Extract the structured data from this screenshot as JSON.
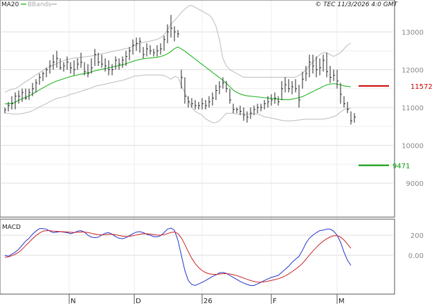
{
  "header": {
    "ma_label": "MA20",
    "bbands_label": "BBands",
    "copyright": "© TEC 11/3/2026 4:0 GMT"
  },
  "colors": {
    "candle": "#222222",
    "ma": "#33bb33",
    "bands": "#bbbbbb",
    "resistance": "#cc0000",
    "support": "#009900",
    "macd": "#2233cc",
    "signal": "#cc2222",
    "grid": "#dddddd",
    "axis": "#555555"
  },
  "chart_data": [
    {
      "type": "candlestick",
      "panel": "price",
      "y_ticks": [
        9000,
        10000,
        11000,
        12000,
        13000
      ],
      "y_tick_labels": [
        "9000",
        "10000",
        "11000",
        "12000",
        "13000"
      ],
      "x_tick_labels": [
        "N",
        "D",
        "26",
        "F",
        "M"
      ],
      "levels": [
        {
          "name": "resistance",
          "value": 11572,
          "label": "11572"
        },
        {
          "name": "support",
          "value": 9471,
          "label": "9471"
        }
      ],
      "series_hlc": [
        [
          11000,
          10850,
          10940
        ],
        [
          11150,
          10900,
          11050
        ],
        [
          11300,
          10950,
          11100
        ],
        [
          11400,
          10950,
          11300
        ],
        [
          11450,
          11100,
          11300
        ],
        [
          11500,
          11150,
          11400
        ],
        [
          11500,
          11200,
          11250
        ],
        [
          11500,
          11200,
          11400
        ],
        [
          11650,
          11300,
          11500
        ],
        [
          11750,
          11400,
          11650
        ],
        [
          11900,
          11600,
          11800
        ],
        [
          11950,
          11700,
          11900
        ],
        [
          12050,
          11800,
          12000
        ],
        [
          12250,
          11900,
          12100
        ],
        [
          12400,
          12000,
          12200
        ],
        [
          12500,
          12050,
          12300
        ],
        [
          12300,
          12000,
          12050
        ],
        [
          12200,
          11950,
          12100
        ],
        [
          12350,
          12000,
          12200
        ],
        [
          12200,
          11900,
          12050
        ],
        [
          12250,
          11850,
          12000
        ],
        [
          12300,
          12000,
          12150
        ],
        [
          12450,
          12050,
          12200
        ],
        [
          12200,
          11850,
          11950
        ],
        [
          12150,
          11800,
          11900
        ],
        [
          12300,
          11900,
          12050
        ],
        [
          12550,
          12100,
          12400
        ],
        [
          12450,
          12100,
          12200
        ],
        [
          12400,
          12050,
          12150
        ],
        [
          12300,
          11950,
          12100
        ],
        [
          12250,
          11850,
          12000
        ],
        [
          12150,
          11850,
          12000
        ],
        [
          12350,
          12000,
          12250
        ],
        [
          12300,
          12000,
          12150
        ],
        [
          12350,
          12050,
          12250
        ],
        [
          12500,
          12100,
          12350
        ],
        [
          12600,
          12250,
          12500
        ],
        [
          12800,
          12400,
          12650
        ],
        [
          12850,
          12500,
          12700
        ],
        [
          12850,
          12450,
          12750
        ],
        [
          12600,
          12300,
          12400
        ],
        [
          12700,
          12350,
          12550
        ],
        [
          12650,
          12400,
          12500
        ],
        [
          12550,
          12350,
          12450
        ],
        [
          12650,
          12350,
          12500
        ],
        [
          12700,
          12400,
          12550
        ],
        [
          12900,
          12500,
          12800
        ],
        [
          13200,
          12700,
          13000
        ],
        [
          13450,
          12850,
          13100
        ],
        [
          13150,
          12750,
          13000
        ],
        [
          13050,
          12850,
          12950
        ],
        [
          12000,
          11500,
          11800
        ],
        [
          11800,
          11100,
          11300
        ],
        [
          11300,
          11000,
          11150
        ],
        [
          11250,
          11000,
          11100
        ],
        [
          11200,
          10950,
          11050
        ],
        [
          11150,
          10950,
          11050
        ],
        [
          11250,
          10950,
          11100
        ],
        [
          11200,
          10950,
          11050
        ],
        [
          11300,
          11000,
          11150
        ],
        [
          11400,
          11050,
          11250
        ],
        [
          11600,
          11200,
          11450
        ],
        [
          11700,
          11350,
          11550
        ],
        [
          11800,
          11500,
          11650
        ],
        [
          11700,
          11400,
          11500
        ],
        [
          11500,
          11100,
          11200
        ],
        [
          11100,
          10850,
          10950
        ],
        [
          11000,
          10850,
          10950
        ],
        [
          11050,
          10800,
          10900
        ],
        [
          11000,
          10650,
          10800
        ],
        [
          10900,
          10600,
          10750
        ],
        [
          11000,
          10700,
          10850
        ],
        [
          11050,
          10800,
          10950
        ],
        [
          11100,
          10850,
          11000
        ],
        [
          11100,
          10900,
          11000
        ],
        [
          11200,
          10950,
          11100
        ],
        [
          11300,
          11000,
          11150
        ],
        [
          11350,
          11050,
          11200
        ],
        [
          11400,
          11100,
          11250
        ],
        [
          11300,
          11050,
          11150
        ],
        [
          11700,
          11200,
          11500
        ],
        [
          11800,
          11400,
          11600
        ],
        [
          11750,
          11400,
          11500
        ],
        [
          11700,
          11350,
          11550
        ],
        [
          11750,
          11400,
          11500
        ],
        [
          11600,
          11000,
          11200
        ],
        [
          11950,
          11500,
          11750
        ],
        [
          12100,
          11700,
          11900
        ],
        [
          12400,
          11800,
          12200
        ],
        [
          12400,
          11900,
          12100
        ],
        [
          12350,
          11800,
          12000
        ],
        [
          12300,
          11850,
          12050
        ],
        [
          12400,
          11950,
          12250
        ],
        [
          12450,
          11800,
          11950
        ],
        [
          12100,
          11650,
          11800
        ],
        [
          12000,
          11700,
          11850
        ],
        [
          12000,
          11500,
          11700
        ],
        [
          11650,
          11100,
          11350
        ],
        [
          11300,
          11000,
          11100
        ],
        [
          11150,
          10850,
          10950
        ],
        [
          10900,
          10550,
          10650
        ],
        [
          10850,
          10600,
          10750
        ]
      ],
      "ma20": [
        11100,
        11100,
        11110,
        11140,
        11190,
        11230,
        11270,
        11310,
        11360,
        11410,
        11470,
        11520,
        11570,
        11620,
        11660,
        11700,
        11730,
        11760,
        11790,
        11820,
        11840,
        11860,
        11880,
        11900,
        11920,
        11940,
        11970,
        11990,
        12010,
        12030,
        12050,
        12070,
        12090,
        12110,
        12130,
        12160,
        12190,
        12220,
        12250,
        12270,
        12290,
        12300,
        12310,
        12320,
        12330,
        12350,
        12380,
        12420,
        12480,
        12560,
        12600,
        12550,
        12490,
        12420,
        12350,
        12280,
        12210,
        12140,
        12070,
        12000,
        11930,
        11860,
        11790,
        11720,
        11640,
        11550,
        11460,
        11400,
        11360,
        11330,
        11310,
        11300,
        11290,
        11280,
        11270,
        11260,
        11250,
        11240,
        11230,
        11220,
        11210,
        11210,
        11210,
        11220,
        11240,
        11260,
        11290,
        11330,
        11380,
        11420,
        11470,
        11510,
        11560,
        11600,
        11620,
        11630,
        11620,
        11600,
        11570,
        11560,
        11550
      ],
      "bb_upper": [
        11400,
        11450,
        11480,
        11500,
        11550,
        11620,
        11680,
        11740,
        11800,
        11860,
        11920,
        11980,
        12040,
        12080,
        12120,
        12160,
        12200,
        12240,
        12270,
        12290,
        12310,
        12320,
        12330,
        12340,
        12350,
        12360,
        12380,
        12400,
        12420,
        12440,
        12460,
        12480,
        12500,
        12520,
        12540,
        12560,
        12580,
        12620,
        12660,
        12700,
        12720,
        12740,
        12760,
        12780,
        12800,
        12850,
        12920,
        13050,
        13200,
        13300,
        13400,
        13520,
        13600,
        13680,
        13700,
        13650,
        13600,
        13550,
        13500,
        13450,
        13350,
        13150,
        12800,
        12300,
        12100,
        12000,
        11950,
        11900,
        11850,
        11800,
        11800,
        11800,
        11800,
        11800,
        11800,
        11800,
        11800,
        11800,
        11800,
        11800,
        11800,
        11800,
        11800,
        11800,
        11800,
        11850,
        11900,
        12000,
        12100,
        12200,
        12300,
        12400,
        12450,
        12450,
        12400,
        12350,
        12400,
        12450,
        12550,
        12650,
        12700
      ],
      "bb_lower": [
        10850,
        10850,
        10830,
        10830,
        10830,
        10840,
        10860,
        10880,
        10920,
        10960,
        11020,
        11060,
        11100,
        11160,
        11200,
        11240,
        11260,
        11280,
        11310,
        11350,
        11370,
        11400,
        11430,
        11460,
        11490,
        11520,
        11560,
        11580,
        11600,
        11620,
        11640,
        11660,
        11680,
        11700,
        11720,
        11750,
        11780,
        11820,
        11840,
        11840,
        11860,
        11860,
        11860,
        11860,
        11860,
        11860,
        11850,
        11800,
        11750,
        11820,
        11800,
        11580,
        11400,
        11200,
        11000,
        10900,
        10850,
        10800,
        10700,
        10650,
        10600,
        10600,
        10650,
        10750,
        10850,
        10850,
        10850,
        10830,
        10830,
        10830,
        10830,
        10830,
        10830,
        10830,
        10800,
        10750,
        10740,
        10720,
        10700,
        10680,
        10660,
        10650,
        10650,
        10650,
        10660,
        10670,
        10680,
        10690,
        10690,
        10690,
        10690,
        10690,
        10690,
        10710,
        10730,
        10760,
        10800,
        10880,
        10950,
        10970,
        10980
      ]
    },
    {
      "type": "line",
      "panel": "macd",
      "title": "MACD",
      "y_ticks": [
        0,
        200
      ],
      "y_tick_labels": [
        "0.00",
        "200"
      ],
      "series": [
        {
          "role": "macd",
          "values": [
            0,
            -10,
            10,
            30,
            60,
            100,
            140,
            170,
            210,
            240,
            265,
            265,
            260,
            240,
            225,
            230,
            235,
            230,
            225,
            215,
            225,
            240,
            245,
            230,
            200,
            180,
            175,
            180,
            200,
            220,
            225,
            210,
            185,
            170,
            165,
            175,
            195,
            215,
            230,
            235,
            225,
            210,
            200,
            185,
            185,
            195,
            225,
            260,
            270,
            250,
            150,
            0,
            -150,
            -250,
            -290,
            -300,
            -285,
            -270,
            -250,
            -230,
            -210,
            -195,
            -175,
            -170,
            -180,
            -200,
            -220,
            -240,
            -260,
            -275,
            -290,
            -300,
            -300,
            -285,
            -270,
            -250,
            -235,
            -220,
            -210,
            -200,
            -170,
            -140,
            -110,
            -70,
            -40,
            -10,
            50,
            120,
            170,
            200,
            225,
            245,
            250,
            260,
            260,
            240,
            200,
            130,
            30,
            -50,
            -100
          ]
        },
        {
          "role": "signal",
          "values": [
            -20,
            -15,
            -5,
            10,
            30,
            60,
            95,
            130,
            165,
            195,
            220,
            240,
            245,
            245,
            240,
            238,
            236,
            234,
            232,
            229,
            227,
            228,
            231,
            231,
            226,
            219,
            211,
            205,
            203,
            205,
            208,
            209,
            204,
            197,
            190,
            187,
            188,
            194,
            202,
            210,
            214,
            214,
            211,
            206,
            201,
            200,
            205,
            216,
            227,
            232,
            216,
            173,
            108,
            36,
            -29,
            -83,
            -123,
            -152,
            -172,
            -184,
            -189,
            -190,
            -187,
            -183,
            -182,
            -186,
            -193,
            -202,
            -214,
            -226,
            -239,
            -251,
            -261,
            -266,
            -267,
            -264,
            -258,
            -250,
            -242,
            -233,
            -221,
            -205,
            -186,
            -163,
            -138,
            -112,
            -80,
            -40,
            2,
            42,
            78,
            112,
            140,
            164,
            183,
            194,
            195,
            182,
            152,
            112,
            70
          ]
        }
      ]
    }
  ]
}
